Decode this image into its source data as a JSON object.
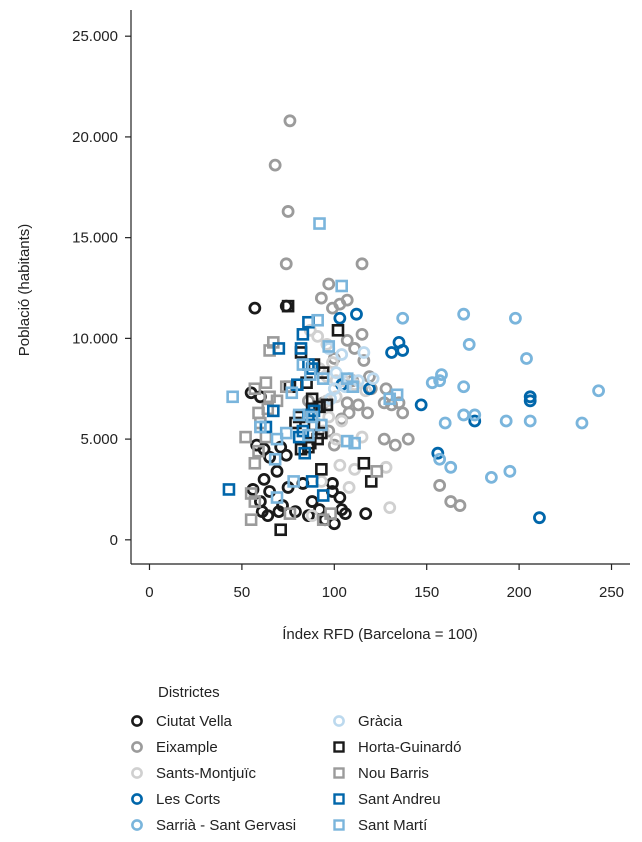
{
  "chart_data": {
    "type": "scatter",
    "xlabel": "Índex RFD (Barcelona = 100)",
    "ylabel": "Població (habitants)",
    "xlim": [
      -10,
      260
    ],
    "ylim": [
      -1200,
      26300
    ],
    "xticks": [
      0,
      50,
      100,
      150,
      200,
      250
    ],
    "xtick_labels": [
      "0",
      "50",
      "100",
      "150",
      "200",
      "250"
    ],
    "yticks": [
      0,
      5000,
      10000,
      15000,
      20000,
      25000
    ],
    "ytick_labels": [
      "0",
      "5.000",
      "10.000",
      "15.000",
      "20.000",
      "25.000"
    ],
    "legend": {
      "title": "Districtes",
      "placement": "bottom-left"
    },
    "series": [
      {
        "name": "Ciutat Vella",
        "marker": "circle",
        "color": "#1a1a1a",
        "points": [
          [
            57,
            11500
          ],
          [
            74,
            11600
          ],
          [
            55,
            7300
          ],
          [
            60,
            7100
          ],
          [
            58,
            4700
          ],
          [
            62,
            4500
          ],
          [
            65,
            4100
          ],
          [
            71,
            4600
          ],
          [
            74,
            4200
          ],
          [
            69,
            3400
          ],
          [
            62,
            3000
          ],
          [
            65,
            2400
          ],
          [
            56,
            2500
          ],
          [
            75,
            2600
          ],
          [
            83,
            2800
          ],
          [
            99,
            2800
          ],
          [
            60,
            1900
          ],
          [
            61,
            1400
          ],
          [
            64,
            1200
          ],
          [
            70,
            1400
          ],
          [
            79,
            1400
          ],
          [
            86,
            1200
          ],
          [
            88,
            1900
          ],
          [
            92,
            1500
          ],
          [
            95,
            1000
          ],
          [
            100,
            800
          ],
          [
            104,
            1500
          ],
          [
            103,
            2100
          ],
          [
            99,
            2400
          ],
          [
            106,
            1300
          ],
          [
            117,
            1300
          ],
          [
            72,
            1700
          ]
        ]
      },
      {
        "name": "Eixample",
        "marker": "circle",
        "color": "#9b9b9b",
        "points": [
          [
            76,
            20800
          ],
          [
            68,
            18600
          ],
          [
            75,
            16300
          ],
          [
            74,
            13700
          ],
          [
            115,
            13700
          ],
          [
            97,
            12700
          ],
          [
            93,
            12000
          ],
          [
            99,
            11500
          ],
          [
            103,
            11700
          ],
          [
            107,
            11900
          ],
          [
            115,
            10200
          ],
          [
            107,
            9900
          ],
          [
            111,
            9500
          ],
          [
            100,
            9000
          ],
          [
            116,
            8900
          ],
          [
            119,
            8100
          ],
          [
            110,
            7900
          ],
          [
            120,
            7500
          ],
          [
            128,
            7500
          ],
          [
            127,
            6800
          ],
          [
            135,
            6800
          ],
          [
            107,
            6800
          ],
          [
            113,
            6700
          ],
          [
            108,
            6300
          ],
          [
            118,
            6300
          ],
          [
            131,
            6700
          ],
          [
            137,
            6300
          ],
          [
            104,
            6000
          ],
          [
            127,
            5000
          ],
          [
            133,
            4700
          ],
          [
            140,
            5000
          ],
          [
            157,
            2700
          ],
          [
            163,
            1900
          ],
          [
            168,
            1700
          ],
          [
            86,
            6900
          ],
          [
            94,
            6800
          ],
          [
            97,
            5400
          ],
          [
            100,
            4700
          ]
        ]
      },
      {
        "name": "Sants-Montjuïc",
        "marker": "circle",
        "color": "#d0d0d0",
        "points": [
          [
            87,
            10400
          ],
          [
            91,
            10100
          ],
          [
            96,
            9700
          ],
          [
            99,
            8800
          ],
          [
            92,
            8500
          ],
          [
            96,
            8100
          ],
          [
            101,
            7900
          ],
          [
            105,
            7900
          ],
          [
            108,
            8000
          ],
          [
            111,
            7700
          ],
          [
            117,
            7400
          ],
          [
            96,
            6900
          ],
          [
            101,
            7100
          ],
          [
            97,
            6100
          ],
          [
            104,
            5900
          ],
          [
            94,
            5400
          ],
          [
            101,
            5000
          ],
          [
            115,
            5100
          ],
          [
            103,
            3700
          ],
          [
            111,
            3500
          ],
          [
            128,
            3600
          ],
          [
            93,
            2900
          ],
          [
            108,
            2600
          ],
          [
            130,
            1600
          ],
          [
            88,
            1200
          ]
        ]
      },
      {
        "name": "Les Corts",
        "marker": "circle",
        "color": "#0066aa",
        "points": [
          [
            103,
            11000
          ],
          [
            112,
            11200
          ],
          [
            131,
            9300
          ],
          [
            137,
            9400
          ],
          [
            135,
            9800
          ],
          [
            104,
            7700
          ],
          [
            119,
            7500
          ],
          [
            147,
            6700
          ],
          [
            176,
            5900
          ],
          [
            206,
            7100
          ],
          [
            206,
            6900
          ],
          [
            156,
            4300
          ],
          [
            211,
            1100
          ]
        ]
      },
      {
        "name": "Sarrià - Sant Gervasi",
        "marker": "circle",
        "color": "#7ab5dc",
        "points": [
          [
            137,
            11000
          ],
          [
            170,
            11200
          ],
          [
            198,
            11000
          ],
          [
            173,
            9700
          ],
          [
            204,
            9000
          ],
          [
            153,
            7800
          ],
          [
            157,
            7900
          ],
          [
            158,
            8200
          ],
          [
            170,
            7600
          ],
          [
            206,
            5900
          ],
          [
            193,
            5900
          ],
          [
            234,
            5800
          ],
          [
            243,
            7400
          ],
          [
            170,
            6200
          ],
          [
            176,
            6200
          ],
          [
            160,
            5800
          ],
          [
            157,
            4000
          ],
          [
            163,
            3600
          ],
          [
            195,
            3400
          ],
          [
            185,
            3100
          ]
        ]
      },
      {
        "name": "Gràcia",
        "marker": "circle",
        "color": "#bcd9ee",
        "points": [
          [
            97,
            9500
          ],
          [
            104,
            9200
          ],
          [
            101,
            8300
          ],
          [
            108,
            8000
          ],
          [
            113,
            7900
          ],
          [
            116,
            9300
          ],
          [
            121,
            8000
          ],
          [
            100,
            7500
          ],
          [
            98,
            7000
          ],
          [
            106,
            7600
          ]
        ]
      },
      {
        "name": "Horta-Guinardó",
        "marker": "square",
        "color": "#1a1a1a",
        "points": [
          [
            75,
            11600
          ],
          [
            102,
            10400
          ],
          [
            82,
            9300
          ],
          [
            89,
            8700
          ],
          [
            94,
            8300
          ],
          [
            85,
            7800
          ],
          [
            76,
            7600
          ],
          [
            88,
            7000
          ],
          [
            92,
            6600
          ],
          [
            96,
            6700
          ],
          [
            88,
            6400
          ],
          [
            81,
            6100
          ],
          [
            79,
            5800
          ],
          [
            89,
            5700
          ],
          [
            93,
            5300
          ],
          [
            91,
            5000
          ],
          [
            87,
            4800
          ],
          [
            86,
            4600
          ],
          [
            82,
            4500
          ],
          [
            93,
            3500
          ],
          [
            116,
            3800
          ],
          [
            120,
            2900
          ],
          [
            71,
            500
          ]
        ]
      },
      {
        "name": "Nou Barris",
        "marker": "square",
        "color": "#9b9b9b",
        "points": [
          [
            67,
            9800
          ],
          [
            65,
            9400
          ],
          [
            63,
            7800
          ],
          [
            57,
            7500
          ],
          [
            65,
            7100
          ],
          [
            74,
            7600
          ],
          [
            69,
            6900
          ],
          [
            64,
            6500
          ],
          [
            59,
            6300
          ],
          [
            60,
            5800
          ],
          [
            63,
            5100
          ],
          [
            52,
            5100
          ],
          [
            59,
            4400
          ],
          [
            57,
            3800
          ],
          [
            55,
            2300
          ],
          [
            57,
            1900
          ],
          [
            55,
            1000
          ],
          [
            76,
            1300
          ],
          [
            94,
            1000
          ],
          [
            98,
            1300
          ],
          [
            123,
            3400
          ]
        ]
      },
      {
        "name": "Sant Andreu",
        "marker": "square",
        "color": "#0066aa",
        "points": [
          [
            70,
            9500
          ],
          [
            86,
            10800
          ],
          [
            83,
            10200
          ],
          [
            82,
            9500
          ],
          [
            86,
            8700
          ],
          [
            88,
            8500
          ],
          [
            80,
            7700
          ],
          [
            89,
            6400
          ],
          [
            86,
            6200
          ],
          [
            81,
            5100
          ],
          [
            67,
            6400
          ],
          [
            63,
            5600
          ],
          [
            83,
            5400
          ],
          [
            84,
            4300
          ],
          [
            88,
            2900
          ],
          [
            94,
            2200
          ],
          [
            43,
            2500
          ]
        ]
      },
      {
        "name": "Sant Martí",
        "marker": "square",
        "color": "#7ab5dc",
        "points": [
          [
            92,
            15700
          ],
          [
            104,
            12600
          ],
          [
            91,
            10900
          ],
          [
            97,
            9600
          ],
          [
            83,
            8700
          ],
          [
            87,
            8200
          ],
          [
            94,
            8000
          ],
          [
            107,
            8000
          ],
          [
            110,
            7600
          ],
          [
            130,
            7000
          ],
          [
            134,
            7200
          ],
          [
            77,
            7300
          ],
          [
            81,
            6200
          ],
          [
            88,
            6100
          ],
          [
            93,
            5700
          ],
          [
            74,
            5300
          ],
          [
            86,
            5200
          ],
          [
            69,
            5000
          ],
          [
            107,
            4900
          ],
          [
            111,
            4800
          ],
          [
            68,
            4000
          ],
          [
            69,
            2100
          ],
          [
            78,
            2900
          ],
          [
            60,
            5600
          ],
          [
            45,
            7100
          ]
        ]
      }
    ]
  }
}
